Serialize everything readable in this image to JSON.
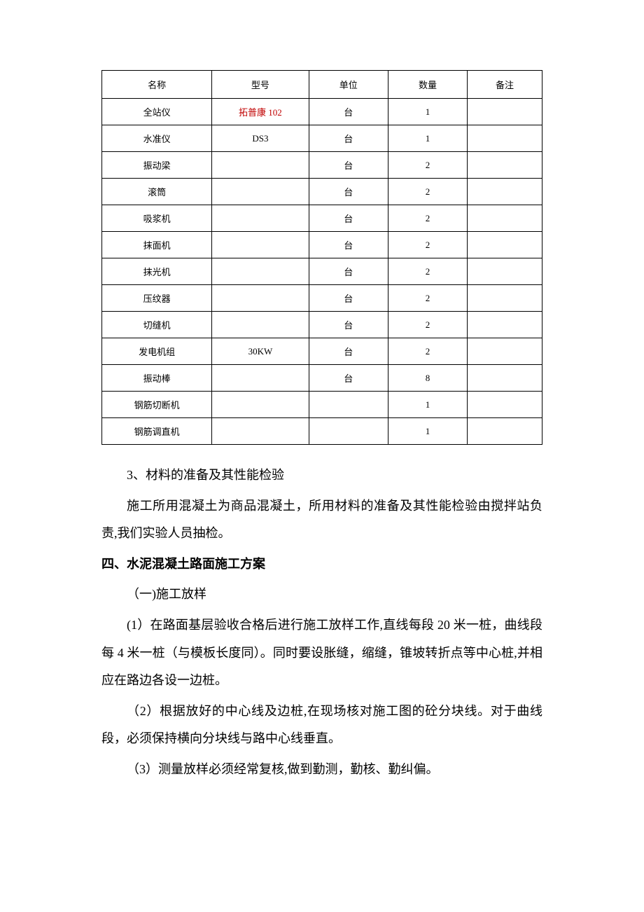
{
  "table": {
    "headers": {
      "name": "名称",
      "model": "型号",
      "unit": "单位",
      "qty": "数量",
      "note": "备注"
    },
    "rows": [
      {
        "name": "全站仪",
        "model": "拓普康 102",
        "model_red": true,
        "unit": "台",
        "qty": "1",
        "note": ""
      },
      {
        "name": "水准仪",
        "model": "DS3",
        "model_red": false,
        "unit": "台",
        "qty": "1",
        "note": ""
      },
      {
        "name": "振动梁",
        "model": "",
        "model_red": false,
        "unit": "台",
        "qty": "2",
        "note": ""
      },
      {
        "name": "滚筒",
        "model": "",
        "model_red": false,
        "unit": "台",
        "qty": "2",
        "note": ""
      },
      {
        "name": "吸浆机",
        "model": "",
        "model_red": false,
        "unit": "台",
        "qty": "2",
        "note": ""
      },
      {
        "name": "抹面机",
        "model": "",
        "model_red": false,
        "unit": "台",
        "qty": "2",
        "note": ""
      },
      {
        "name": "抹光机",
        "model": "",
        "model_red": false,
        "unit": "台",
        "qty": "2",
        "note": ""
      },
      {
        "name": "压纹器",
        "model": "",
        "model_red": false,
        "unit": "台",
        "qty": "2",
        "note": ""
      },
      {
        "name": "切缝机",
        "model": "",
        "model_red": false,
        "unit": "台",
        "qty": "2",
        "note": ""
      },
      {
        "name": "发电机组",
        "model": "30KW",
        "model_red": false,
        "unit": "台",
        "qty": "2",
        "note": ""
      },
      {
        "name": "振动棒",
        "model": "",
        "model_red": false,
        "unit": "台",
        "qty": "8",
        "note": ""
      },
      {
        "name": "钢筋切断机",
        "model": "",
        "model_red": false,
        "unit": "",
        "qty": "1",
        "note": ""
      },
      {
        "name": "钢筋调直机",
        "model": "",
        "model_red": false,
        "unit": "",
        "qty": "1",
        "note": ""
      }
    ]
  },
  "paragraphs": {
    "p1": "3、材料的准备及其性能检验",
    "p2": "施工所用混凝土为商品混凝土，所用材料的准备及其性能检验由搅拌站负责,我们实验人员抽检。",
    "h1": "四、水泥混凝土路面施工方案",
    "p3": "（一)施工放样",
    "p4": "(1）在路面基层验收合格后进行施工放样工作,直线每段 20 米一桩，曲线段每 4 米一桩（与模板长度同）。同时要设胀缝，缩缝，锥坡转折点等中心桩,并相应在路边各设一边桩。",
    "p5": "（2）根据放好的中心线及边桩,在现场核对施工图的砼分块线。对于曲线段，必须保持横向分块线与路中心线垂直。",
    "p6": "（3）测量放样必须经常复核,做到勤测，勤核、勤纠偏。"
  },
  "styles": {
    "red_color": "#c00000",
    "text_color": "#000000",
    "border_color": "#000000",
    "background_color": "#ffffff",
    "body_fontsize": 18,
    "table_fontsize": 13
  }
}
